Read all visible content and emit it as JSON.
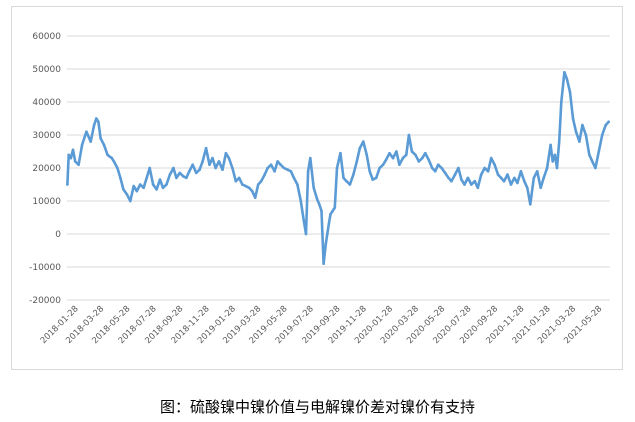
{
  "caption": "图：硫酸镍中镍价值与电解镍价差对镍价有支持",
  "chart_data": {
    "type": "line",
    "title": "",
    "xlabel": "",
    "ylabel": "",
    "ylim": [
      -20000,
      60000
    ],
    "yticks": [
      -20000,
      -10000,
      0,
      10000,
      20000,
      30000,
      40000,
      50000,
      60000
    ],
    "ytick_labels": [
      "-20000",
      "-10000",
      "0",
      "10000",
      "20000",
      "30000",
      "40000",
      "50000",
      "60000"
    ],
    "grid": "horizontal",
    "legend": "none",
    "color": "#5b9bd5",
    "xtick_labels": [
      "2018-01-28",
      "2018-03-28",
      "2018-05-28",
      "2018-07-28",
      "2018-09-28",
      "2018-11-28",
      "2019-01-28",
      "2019-03-28",
      "2019-05-28",
      "2019-07-28",
      "2019-09-28",
      "2019-11-28",
      "2020-01-28",
      "2020-03-28",
      "2020-05-28",
      "2020-07-28",
      "2020-09-28",
      "2020-11-28",
      "2021-01-28",
      "2021-03-28",
      "2021-05-28"
    ],
    "series": [
      {
        "x": [
          "2018-01-02",
          "2018-01-05",
          "2018-01-10",
          "2018-01-15",
          "2018-01-20",
          "2018-01-28",
          "2018-02-05",
          "2018-02-15",
          "2018-02-25",
          "2018-03-05",
          "2018-03-10",
          "2018-03-15",
          "2018-03-20",
          "2018-03-28",
          "2018-04-05",
          "2018-04-10",
          "2018-04-15",
          "2018-04-20",
          "2018-04-28",
          "2018-05-05",
          "2018-05-12",
          "2018-05-20",
          "2018-05-28",
          "2018-06-05",
          "2018-06-12",
          "2018-06-20",
          "2018-06-28",
          "2018-07-05",
          "2018-07-12",
          "2018-07-20",
          "2018-07-28",
          "2018-08-05",
          "2018-08-12",
          "2018-08-20",
          "2018-08-28",
          "2018-09-05",
          "2018-09-12",
          "2018-09-20",
          "2018-09-28",
          "2018-10-05",
          "2018-10-12",
          "2018-10-20",
          "2018-10-28",
          "2018-11-05",
          "2018-11-12",
          "2018-11-20",
          "2018-11-28",
          "2018-12-05",
          "2018-12-12",
          "2018-12-20",
          "2018-12-28",
          "2019-01-05",
          "2019-01-12",
          "2019-01-20",
          "2019-01-28",
          "2019-02-05",
          "2019-02-12",
          "2019-02-20",
          "2019-02-28",
          "2019-03-07",
          "2019-03-14",
          "2019-03-21",
          "2019-03-28",
          "2019-04-05",
          "2019-04-12",
          "2019-04-20",
          "2019-04-28",
          "2019-05-05",
          "2019-05-12",
          "2019-05-20",
          "2019-05-28",
          "2019-06-05",
          "2019-06-12",
          "2019-06-20",
          "2019-06-28",
          "2019-07-05",
          "2019-07-10",
          "2019-07-15",
          "2019-07-20",
          "2019-07-28",
          "2019-08-05",
          "2019-08-10",
          "2019-08-15",
          "2019-08-20",
          "2019-08-25",
          "2019-09-01",
          "2019-09-05",
          "2019-09-10",
          "2019-09-15",
          "2019-09-20",
          "2019-09-28",
          "2019-10-05",
          "2019-10-12",
          "2019-10-20",
          "2019-10-28",
          "2019-11-05",
          "2019-11-12",
          "2019-11-20",
          "2019-11-28",
          "2019-12-05",
          "2019-12-12",
          "2019-12-20",
          "2019-12-28",
          "2020-01-05",
          "2020-01-12",
          "2020-01-20",
          "2020-01-28",
          "2020-02-05",
          "2020-02-12",
          "2020-02-20",
          "2020-02-28",
          "2020-03-05",
          "2020-03-12",
          "2020-03-20",
          "2020-03-28",
          "2020-04-05",
          "2020-04-12",
          "2020-04-20",
          "2020-04-28",
          "2020-05-05",
          "2020-05-12",
          "2020-05-20",
          "2020-05-28",
          "2020-06-05",
          "2020-06-12",
          "2020-06-20",
          "2020-06-28",
          "2020-07-05",
          "2020-07-12",
          "2020-07-20",
          "2020-07-28",
          "2020-08-05",
          "2020-08-12",
          "2020-08-20",
          "2020-08-28",
          "2020-09-05",
          "2020-09-12",
          "2020-09-20",
          "2020-09-28",
          "2020-10-05",
          "2020-10-12",
          "2020-10-20",
          "2020-10-28",
          "2020-11-05",
          "2020-11-12",
          "2020-11-20",
          "2020-11-28",
          "2020-12-05",
          "2020-12-12",
          "2020-12-20",
          "2020-12-28",
          "2021-01-05",
          "2021-01-12",
          "2021-01-20",
          "2021-01-28",
          "2021-02-02",
          "2021-02-07",
          "2021-02-12",
          "2021-02-17",
          "2021-02-22",
          "2021-03-01",
          "2021-03-07",
          "2021-03-14",
          "2021-03-21",
          "2021-03-28",
          "2021-04-05",
          "2021-04-12",
          "2021-04-20",
          "2021-04-28",
          "2021-05-05",
          "2021-05-12",
          "2021-05-20",
          "2021-05-28",
          "2021-06-05",
          "2021-06-12"
        ],
        "y": [
          15000,
          24000,
          23000,
          25500,
          22000,
          21000,
          27000,
          31000,
          28000,
          33000,
          35000,
          34000,
          29000,
          27000,
          24000,
          23500,
          23000,
          22000,
          20000,
          17000,
          13500,
          12000,
          10000,
          14500,
          13000,
          15000,
          14000,
          17000,
          20000,
          15000,
          13500,
          16500,
          14000,
          15000,
          18000,
          20000,
          17000,
          18500,
          17500,
          17000,
          19000,
          21000,
          18500,
          19500,
          22000,
          26000,
          21000,
          23000,
          20000,
          22000,
          19500,
          24500,
          23000,
          20000,
          16000,
          17000,
          15000,
          14500,
          14000,
          13000,
          11000,
          15000,
          16000,
          18000,
          20000,
          21000,
          19000,
          22000,
          21000,
          20000,
          19500,
          19000,
          17000,
          15000,
          10000,
          4000,
          0,
          19000,
          23000,
          14000,
          10500,
          9000,
          7000,
          -9000,
          -3000,
          3000,
          6000,
          7000,
          8000,
          20000,
          24500,
          17000,
          16000,
          15000,
          18000,
          22000,
          26000,
          28000,
          24000,
          19000,
          16500,
          17000,
          20000,
          21000,
          22500,
          24500,
          23000,
          25000,
          21000,
          23000,
          24000,
          30000,
          25000,
          24000,
          22000,
          23000,
          24500,
          22500,
          20000,
          19000,
          21000,
          20000,
          18500,
          17000,
          16000,
          18000,
          20000,
          16500,
          15000,
          17000,
          15000,
          16000,
          14000,
          18000,
          20000,
          19000,
          23000,
          21000,
          18000,
          17000,
          16000,
          18000,
          15000,
          17000,
          15500,
          19000,
          16000,
          14000,
          9000,
          17000,
          19000,
          14000,
          17000,
          20000,
          27000,
          22000,
          24000,
          20000,
          28000,
          40000,
          49000,
          47000,
          43000,
          35000,
          31000,
          28000,
          33000,
          30000,
          24000,
          22000,
          20000,
          25000,
          30000,
          33000,
          34000
        ]
      }
    ]
  }
}
